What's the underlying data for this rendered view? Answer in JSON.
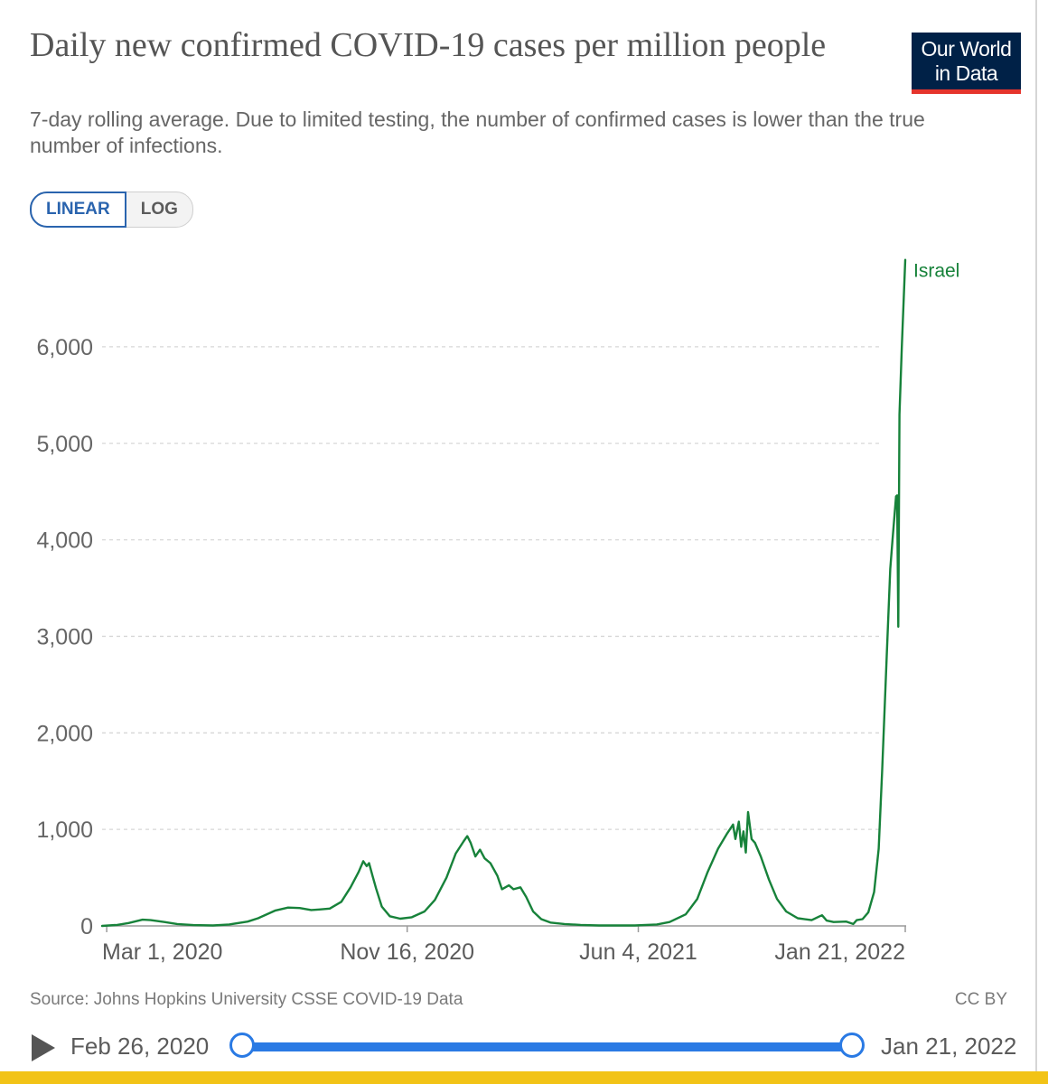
{
  "title": "Daily new confirmed COVID-19 cases per million people",
  "subtitle": "7-day rolling average. Due to limited testing, the number of confirmed cases is lower than the true number of infections.",
  "logo": {
    "line1": "Our World",
    "line2": "in Data",
    "bg_color": "#002147",
    "accent_color": "#e5342c"
  },
  "scale_toggle": {
    "options": [
      "LINEAR",
      "LOG"
    ],
    "selected": "LINEAR"
  },
  "footer": {
    "source": "Source: Johns Hopkins University CSSE COVID-19 Data",
    "license": "CC BY"
  },
  "timeline": {
    "start_label": "Feb 26, 2020",
    "end_label": "Jan 21, 2022",
    "play_icon": "play-icon",
    "accent_color": "#2a7ae4"
  },
  "chart_data": {
    "type": "line",
    "xlabel": "",
    "ylabel": "",
    "x_ticks": [
      "Mar 1, 2020",
      "Nov 16, 2020",
      "Jun 4, 2021",
      "Jan 21, 2022"
    ],
    "x_range": [
      "Feb 26, 2020",
      "Jan 21, 2022"
    ],
    "y_ticks": [
      0,
      1000,
      2000,
      3000,
      4000,
      5000,
      6000
    ],
    "y_tick_labels": [
      "0",
      "1,000",
      "2,000",
      "3,000",
      "4,000",
      "5,000",
      "6,000"
    ],
    "ylim": [
      0,
      6900
    ],
    "grid": "horizontal dashed",
    "line_color": "#17823a",
    "series": [
      {
        "name": "Israel",
        "points": [
          [
            "2020-02-26",
            0
          ],
          [
            "2020-03-10",
            10
          ],
          [
            "2020-03-20",
            30
          ],
          [
            "2020-04-01",
            65
          ],
          [
            "2020-04-08",
            60
          ],
          [
            "2020-04-20",
            40
          ],
          [
            "2020-05-01",
            20
          ],
          [
            "2020-05-15",
            8
          ],
          [
            "2020-06-01",
            5
          ],
          [
            "2020-06-15",
            15
          ],
          [
            "2020-07-01",
            45
          ],
          [
            "2020-07-10",
            80
          ],
          [
            "2020-07-25",
            160
          ],
          [
            "2020-08-05",
            190
          ],
          [
            "2020-08-15",
            185
          ],
          [
            "2020-08-25",
            165
          ],
          [
            "2020-09-01",
            170
          ],
          [
            "2020-09-10",
            180
          ],
          [
            "2020-09-20",
            250
          ],
          [
            "2020-09-28",
            400
          ],
          [
            "2020-10-05",
            560
          ],
          [
            "2020-10-09",
            670
          ],
          [
            "2020-10-12",
            620
          ],
          [
            "2020-10-14",
            650
          ],
          [
            "2020-10-17",
            520
          ],
          [
            "2020-10-20",
            390
          ],
          [
            "2020-10-25",
            200
          ],
          [
            "2020-11-01",
            100
          ],
          [
            "2020-11-10",
            75
          ],
          [
            "2020-11-20",
            90
          ],
          [
            "2020-12-01",
            150
          ],
          [
            "2020-12-10",
            270
          ],
          [
            "2020-12-20",
            500
          ],
          [
            "2020-12-28",
            750
          ],
          [
            "2021-01-04",
            880
          ],
          [
            "2021-01-07",
            930
          ],
          [
            "2021-01-10",
            860
          ],
          [
            "2021-01-14",
            720
          ],
          [
            "2021-01-18",
            790
          ],
          [
            "2021-01-22",
            700
          ],
          [
            "2021-01-27",
            650
          ],
          [
            "2021-02-02",
            520
          ],
          [
            "2021-02-06",
            380
          ],
          [
            "2021-02-12",
            420
          ],
          [
            "2021-02-16",
            380
          ],
          [
            "2021-02-22",
            400
          ],
          [
            "2021-02-27",
            300
          ],
          [
            "2021-03-05",
            150
          ],
          [
            "2021-03-12",
            70
          ],
          [
            "2021-03-20",
            35
          ],
          [
            "2021-04-01",
            20
          ],
          [
            "2021-04-15",
            10
          ],
          [
            "2021-05-01",
            5
          ],
          [
            "2021-06-01",
            5
          ],
          [
            "2021-06-20",
            15
          ],
          [
            "2021-07-01",
            40
          ],
          [
            "2021-07-15",
            120
          ],
          [
            "2021-07-25",
            280
          ],
          [
            "2021-08-03",
            560
          ],
          [
            "2021-08-12",
            800
          ],
          [
            "2021-08-20",
            960
          ],
          [
            "2021-08-25",
            1050
          ],
          [
            "2021-08-27",
            900
          ],
          [
            "2021-08-30",
            1080
          ],
          [
            "2021-09-01",
            820
          ],
          [
            "2021-09-03",
            980
          ],
          [
            "2021-09-05",
            760
          ],
          [
            "2021-09-07",
            1180
          ],
          [
            "2021-09-10",
            900
          ],
          [
            "2021-09-13",
            860
          ],
          [
            "2021-09-18",
            720
          ],
          [
            "2021-09-25",
            480
          ],
          [
            "2021-10-02",
            280
          ],
          [
            "2021-10-10",
            150
          ],
          [
            "2021-10-20",
            80
          ],
          [
            "2021-11-01",
            60
          ],
          [
            "2021-11-08",
            100
          ],
          [
            "2021-11-10",
            110
          ],
          [
            "2021-11-14",
            55
          ],
          [
            "2021-11-20",
            40
          ],
          [
            "2021-12-01",
            45
          ],
          [
            "2021-12-07",
            20
          ],
          [
            "2021-12-10",
            60
          ],
          [
            "2021-12-15",
            70
          ],
          [
            "2021-12-20",
            140
          ],
          [
            "2021-12-25",
            350
          ],
          [
            "2021-12-29",
            800
          ],
          [
            "2022-01-01",
            1600
          ],
          [
            "2022-01-05",
            2800
          ],
          [
            "2022-01-08",
            3700
          ],
          [
            "2022-01-10",
            4000
          ],
          [
            "2022-01-13",
            4450
          ],
          [
            "2022-01-14",
            4460
          ],
          [
            "2022-01-15",
            3100
          ],
          [
            "2022-01-16",
            5300
          ],
          [
            "2022-01-18",
            6000
          ],
          [
            "2022-01-21",
            6900
          ]
        ]
      }
    ]
  }
}
